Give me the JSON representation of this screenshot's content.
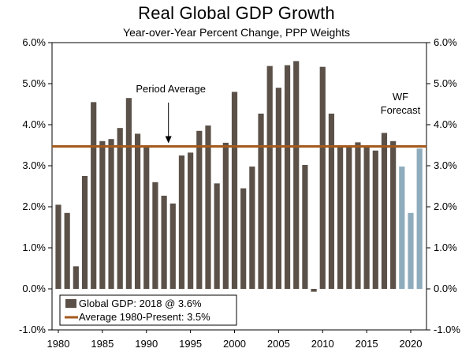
{
  "chart_data": {
    "type": "bar",
    "title": "Real Global GDP Growth",
    "subtitle": "Year-over-Year Percent Change, PPP Weights",
    "xlabel": "",
    "ylabel": "",
    "ylim": [
      -1.0,
      6.0
    ],
    "y_ticks": [
      "6.0%",
      "5.0%",
      "4.0%",
      "3.0%",
      "2.0%",
      "1.0%",
      "0.0%",
      "-1.0%"
    ],
    "y_tick_values": [
      6,
      5,
      4,
      3,
      2,
      1,
      0,
      -1
    ],
    "x_ticks": [
      "1980",
      "1985",
      "1990",
      "1995",
      "2000",
      "2005",
      "2010",
      "2015",
      "2020"
    ],
    "x_tick_values": [
      1980,
      1985,
      1990,
      1995,
      2000,
      2005,
      2010,
      2015,
      2020
    ],
    "grid": false,
    "dual_y_axis": true,
    "x": [
      1980,
      1981,
      1982,
      1983,
      1984,
      1985,
      1986,
      1987,
      1988,
      1989,
      1990,
      1991,
      1992,
      1993,
      1994,
      1995,
      1996,
      1997,
      1998,
      1999,
      2000,
      2001,
      2002,
      2003,
      2004,
      2005,
      2006,
      2007,
      2008,
      2009,
      2010,
      2011,
      2012,
      2013,
      2014,
      2015,
      2016,
      2017,
      2018,
      2019,
      2020,
      2021
    ],
    "series": [
      {
        "name": "Global GDP: 2018 @ 3.6%",
        "color": "#5b5148",
        "x": [
          1980,
          1981,
          1982,
          1983,
          1984,
          1985,
          1986,
          1987,
          1988,
          1989,
          1990,
          1991,
          1992,
          1993,
          1994,
          1995,
          1996,
          1997,
          1998,
          1999,
          2000,
          2001,
          2002,
          2003,
          2004,
          2005,
          2006,
          2007,
          2008,
          2009,
          2010,
          2011,
          2012,
          2013,
          2014,
          2015,
          2016,
          2017,
          2018
        ],
        "values": [
          2.05,
          1.85,
          0.55,
          2.75,
          4.55,
          3.6,
          3.65,
          3.92,
          4.65,
          3.78,
          3.47,
          2.6,
          2.27,
          2.08,
          3.25,
          3.32,
          3.85,
          3.98,
          2.57,
          3.56,
          4.8,
          2.45,
          2.98,
          4.27,
          5.43,
          4.9,
          5.45,
          5.55,
          3.02,
          -0.07,
          5.41,
          4.27,
          3.5,
          3.45,
          3.57,
          3.45,
          3.37,
          3.8,
          3.6
        ]
      },
      {
        "name": "WF Forecast",
        "color": "#8facbd",
        "x": [
          2019,
          2020,
          2021
        ],
        "values": [
          2.98,
          1.85,
          3.42
        ]
      }
    ],
    "average": {
      "name": "Average 1980-Present: 3.5%",
      "value": 3.47,
      "color": "#a45a1d"
    },
    "annotations": {
      "period_average": "Period Average",
      "forecast_line1": "WF",
      "forecast_line2": "Forecast"
    },
    "legend": {
      "placement": "bottom-left",
      "entries": [
        "Global GDP: 2018 @ 3.6%",
        "Average 1980-Present: 3.5%"
      ]
    }
  }
}
